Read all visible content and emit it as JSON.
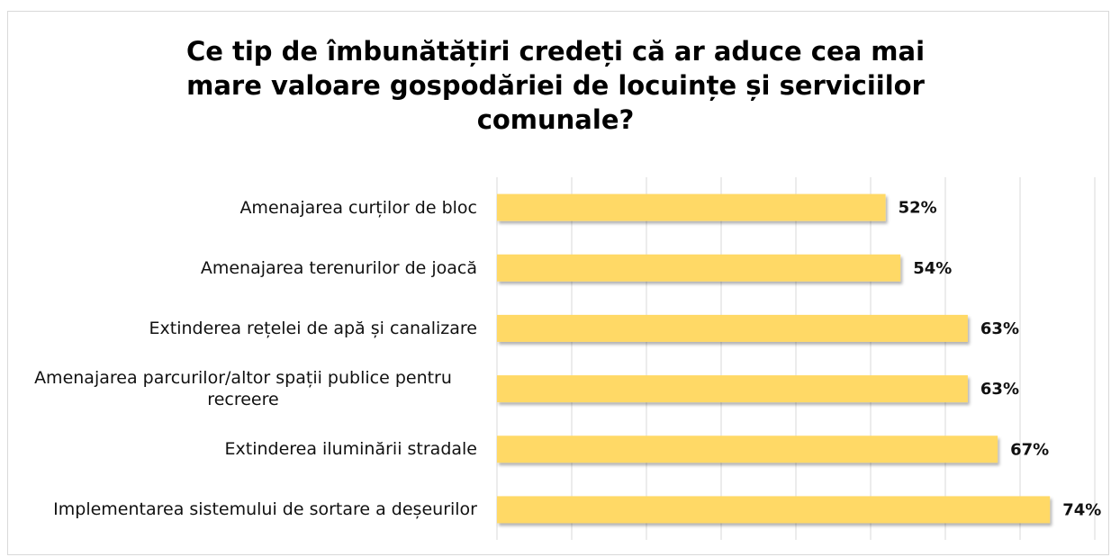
{
  "chart_data": {
    "type": "bar",
    "orientation": "horizontal",
    "title": "Ce tip de îmbunătățiri credeți că ar aduce cea mai mare valoare gospodăriei de locuințe și serviciilor comunale?",
    "categories": [
      "Amenajarea curților de bloc",
      "Amenajarea terenurilor de joacă",
      "Extinderea rețelei de apă și canalizare",
      "Amenajarea parcurilor/altor spații publice pentru recreere",
      "Extinderea iluminării stradale",
      "Implementarea sistemului de sortare a deșeurilor"
    ],
    "values": [
      52,
      54,
      63,
      63,
      67,
      74
    ],
    "value_labels": [
      "52%",
      "54%",
      "63%",
      "63%",
      "67%",
      "74%"
    ],
    "color": "#ffd966",
    "xlim": [
      0,
      80
    ],
    "xticks": [
      0,
      10,
      20,
      30,
      40,
      50,
      60,
      70,
      80
    ],
    "grid": true
  }
}
